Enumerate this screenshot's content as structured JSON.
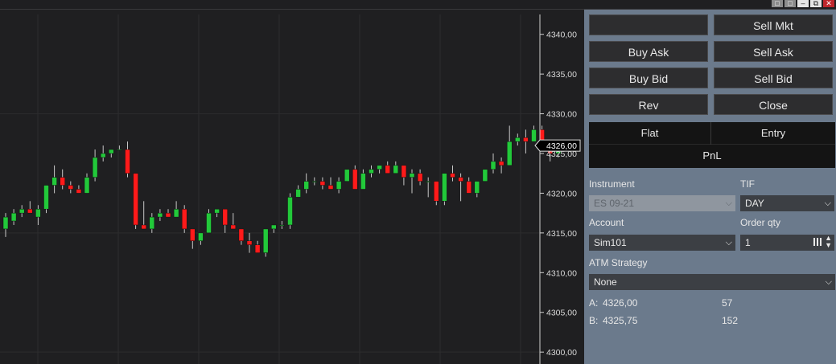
{
  "window_controls": [
    "□",
    "□",
    "–",
    "⧉",
    "✕"
  ],
  "price_axis": {
    "ticks": [
      "4340,00",
      "4335,00",
      "4330,00",
      "4325,00",
      "4320,00",
      "4315,00",
      "4310,00",
      "4305,00",
      "4300,00"
    ],
    "current_price": "4326,00"
  },
  "chart_data": {
    "type": "candlestick",
    "ylim": [
      4298.5,
      4342.5
    ],
    "yticks": [
      4340,
      4335,
      4330,
      4325,
      4320,
      4315,
      4310,
      4305,
      4300
    ],
    "last_price": 4326.0,
    "colors": {
      "up": "#22c93a",
      "down": "#ff1a1a",
      "wick": "#c8c8c8"
    },
    "candles": [
      [
        4315.5,
        4317.5,
        4314.5,
        4317.0
      ],
      [
        4316.5,
        4318.0,
        4316.0,
        4317.5
      ],
      [
        4317.5,
        4318.5,
        4317.0,
        4318.0
      ],
      [
        4318.0,
        4319.0,
        4317.5,
        4317.5
      ],
      [
        4317.0,
        4318.5,
        4316.0,
        4318.0
      ],
      [
        4318.0,
        4321.0,
        4317.5,
        4321.0
      ],
      [
        4321.0,
        4323.5,
        4320.0,
        4322.0
      ],
      [
        4322.0,
        4323.0,
        4320.5,
        4321.0
      ],
      [
        4321.0,
        4321.5,
        4320.0,
        4320.5
      ],
      [
        4320.5,
        4321.0,
        4320.0,
        4320.0
      ],
      [
        4320.0,
        4322.5,
        4320.0,
        4322.0
      ],
      [
        4322.0,
        4325.5,
        4321.5,
        4324.5
      ],
      [
        4324.5,
        4326.0,
        4324.0,
        4325.0
      ],
      [
        4325.0,
        4325.5,
        4324.5,
        4325.5
      ],
      [
        4325.5,
        4326.0,
        4325.5,
        4325.5
      ],
      [
        4325.5,
        4326.5,
        4322.0,
        4322.5
      ],
      [
        4322.5,
        4322.5,
        4315.5,
        4316.0
      ],
      [
        4316.0,
        4319.0,
        4315.5,
        4315.5
      ],
      [
        4315.5,
        4317.5,
        4315.0,
        4317.0
      ],
      [
        4317.0,
        4318.0,
        4316.5,
        4317.5
      ],
      [
        4317.5,
        4318.0,
        4317.0,
        4317.0
      ],
      [
        4317.0,
        4319.0,
        4317.0,
        4318.0
      ],
      [
        4318.0,
        4318.5,
        4315.0,
        4315.5
      ],
      [
        4315.5,
        4315.5,
        4313.0,
        4314.0
      ],
      [
        4314.0,
        4315.0,
        4313.5,
        4315.0
      ],
      [
        4315.0,
        4318.0,
        4315.0,
        4317.5
      ],
      [
        4317.5,
        4318.0,
        4317.0,
        4318.0
      ],
      [
        4318.0,
        4318.0,
        4315.0,
        4316.0
      ],
      [
        4316.0,
        4317.5,
        4315.5,
        4315.5
      ],
      [
        4315.5,
        4315.5,
        4313.5,
        4314.0
      ],
      [
        4314.0,
        4315.0,
        4312.5,
        4313.5
      ],
      [
        4313.5,
        4314.0,
        4312.5,
        4312.5
      ],
      [
        4312.5,
        4315.5,
        4312.0,
        4315.5
      ],
      [
        4315.5,
        4316.0,
        4315.0,
        4316.0
      ],
      [
        4316.0,
        4316.5,
        4315.5,
        4316.0
      ],
      [
        4316.0,
        4320.0,
        4315.5,
        4319.5
      ],
      [
        4319.5,
        4321.0,
        4319.5,
        4320.5
      ],
      [
        4320.5,
        4322.5,
        4320.0,
        4321.5
      ],
      [
        4321.5,
        4322.0,
        4321.0,
        4321.5
      ],
      [
        4321.5,
        4322.0,
        4320.5,
        4321.0
      ],
      [
        4321.0,
        4322.0,
        4320.5,
        4320.5
      ],
      [
        4320.5,
        4322.0,
        4320.0,
        4321.5
      ],
      [
        4321.5,
        4323.0,
        4321.5,
        4323.0
      ],
      [
        4323.0,
        4323.5,
        4320.5,
        4320.5
      ],
      [
        4320.5,
        4323.0,
        4320.5,
        4322.5
      ],
      [
        4322.5,
        4323.5,
        4322.0,
        4323.0
      ],
      [
        4323.0,
        4323.5,
        4322.5,
        4323.5
      ],
      [
        4323.5,
        4324.0,
        4322.5,
        4322.5
      ],
      [
        4322.5,
        4324.0,
        4322.5,
        4323.5
      ],
      [
        4323.5,
        4323.5,
        4321.0,
        4322.0
      ],
      [
        4322.0,
        4323.0,
        4320.0,
        4322.5
      ],
      [
        4322.5,
        4323.0,
        4321.0,
        4321.5
      ],
      [
        4321.5,
        4322.0,
        4319.5,
        4321.5
      ],
      [
        4321.5,
        4321.5,
        4318.5,
        4319.0
      ],
      [
        4319.0,
        4322.5,
        4318.5,
        4322.5
      ],
      [
        4322.5,
        4323.5,
        4321.5,
        4322.0
      ],
      [
        4322.0,
        4322.5,
        4319.0,
        4321.5
      ],
      [
        4321.5,
        4322.0,
        4320.0,
        4320.0
      ],
      [
        4320.0,
        4321.5,
        4319.5,
        4321.5
      ],
      [
        4321.5,
        4323.0,
        4321.5,
        4323.0
      ],
      [
        4323.0,
        4325.0,
        4322.5,
        4324.0
      ],
      [
        4324.0,
        4324.5,
        4322.5,
        4323.5
      ],
      [
        4323.5,
        4328.5,
        4323.5,
        4326.5
      ],
      [
        4326.5,
        4327.5,
        4326.0,
        4327.0
      ],
      [
        4327.0,
        4328.0,
        4325.0,
        4326.5
      ],
      [
        4326.5,
        4328.5,
        4326.5,
        4328.0
      ],
      [
        4328.0,
        4328.5,
        4325.5,
        4326.0
      ],
      [
        4326.0,
        4326.5,
        4324.0,
        4325.0
      ],
      [
        4325.0,
        4326.5,
        4324.5,
        4326.0
      ]
    ]
  },
  "panel": {
    "buttons": {
      "blank": "",
      "sell_mkt": "Sell Mkt",
      "buy_ask": "Buy Ask",
      "sell_ask": "Sell Ask",
      "buy_bid": "Buy Bid",
      "sell_bid": "Sell Bid",
      "rev": "Rev",
      "close": "Close"
    },
    "position": {
      "flat": "Flat",
      "entry": "Entry",
      "pnl": "PnL"
    },
    "instrument_label": "Instrument",
    "instrument_value": "ES 09-21",
    "tif_label": "TIF",
    "tif_value": "DAY",
    "account_label": "Account",
    "account_value": "Sim101",
    "order_qty_label": "Order qty",
    "order_qty_value": "1",
    "atm_label": "ATM Strategy",
    "atm_value": "None",
    "ask_label": "A:",
    "ask_price": "4326,00",
    "ask_size": "57",
    "bid_label": "B:",
    "bid_price": "4325,75",
    "bid_size": "152"
  }
}
